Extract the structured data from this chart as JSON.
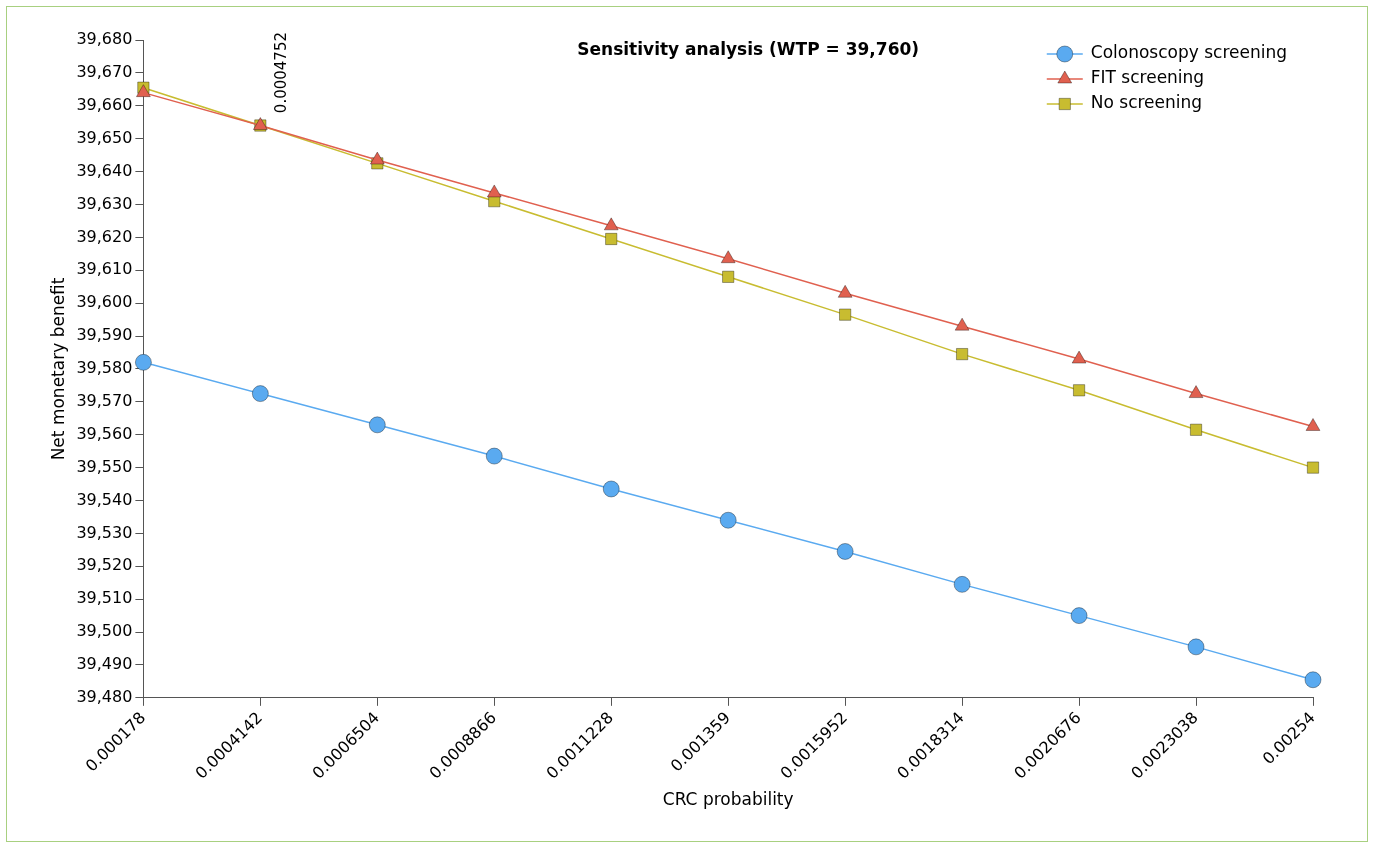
{
  "chart_data": {
    "type": "line",
    "title": "Sensitivity analysis (WTP = 39,760)",
    "xlabel": "CRC probability",
    "ylabel": "Net monetary benefit",
    "categories": [
      "0.000178",
      "0.0004142",
      "0.0006504",
      "0.0008866",
      "0.0011228",
      "0.001359",
      "0.0015952",
      "0.0018314",
      "0.0020676",
      "0.0023038",
      "0.00254"
    ],
    "series": [
      {
        "name": "Colonoscopy screening",
        "color": "#5aaaf0",
        "marker": "circle",
        "values": [
          39582,
          39572.5,
          39563,
          39553.5,
          39543.5,
          39534,
          39524.5,
          39514.5,
          39505,
          39495.5,
          39485.5
        ]
      },
      {
        "name": "FIT screening",
        "color": "#e0604f",
        "marker": "triangle",
        "values": [
          39664,
          39654,
          39643.5,
          39633.5,
          39623.5,
          39613.5,
          39603,
          39593,
          39583,
          39572.5,
          39562.5
        ]
      },
      {
        "name": "No screening",
        "color": "#c8bc30",
        "marker": "square",
        "values": [
          39665.5,
          39654,
          39642.5,
          39631,
          39619.5,
          39608,
          39596.5,
          39584.5,
          39573.5,
          39561.5,
          39550
        ]
      }
    ],
    "ylim": [
      39480,
      39680
    ],
    "yticks": [
      {
        "value": 39480,
        "label": "39,480"
      },
      {
        "value": 39490,
        "label": "39,490"
      },
      {
        "value": 39500,
        "label": "39,500"
      },
      {
        "value": 39510,
        "label": "39,510"
      },
      {
        "value": 39520,
        "label": "39,520"
      },
      {
        "value": 39530,
        "label": "39,530"
      },
      {
        "value": 39540,
        "label": "39,540"
      },
      {
        "value": 39550,
        "label": "39,550"
      },
      {
        "value": 39560,
        "label": "39,560"
      },
      {
        "value": 39570,
        "label": "39,570"
      },
      {
        "value": 39580,
        "label": "39,580"
      },
      {
        "value": 39590,
        "label": "39,590"
      },
      {
        "value": 39600,
        "label": "39,600"
      },
      {
        "value": 39610,
        "label": "39,610"
      },
      {
        "value": 39620,
        "label": "39,620"
      },
      {
        "value": 39630,
        "label": "39,630"
      },
      {
        "value": 39640,
        "label": "39,640"
      },
      {
        "value": 39650,
        "label": "39,650"
      },
      {
        "value": 39660,
        "label": "39,660"
      },
      {
        "value": 39670,
        "label": "39,670"
      },
      {
        "value": 39680,
        "label": "39,680"
      }
    ],
    "annotations": [
      "0.0004752"
    ],
    "grid": false,
    "legend": "top right"
  }
}
